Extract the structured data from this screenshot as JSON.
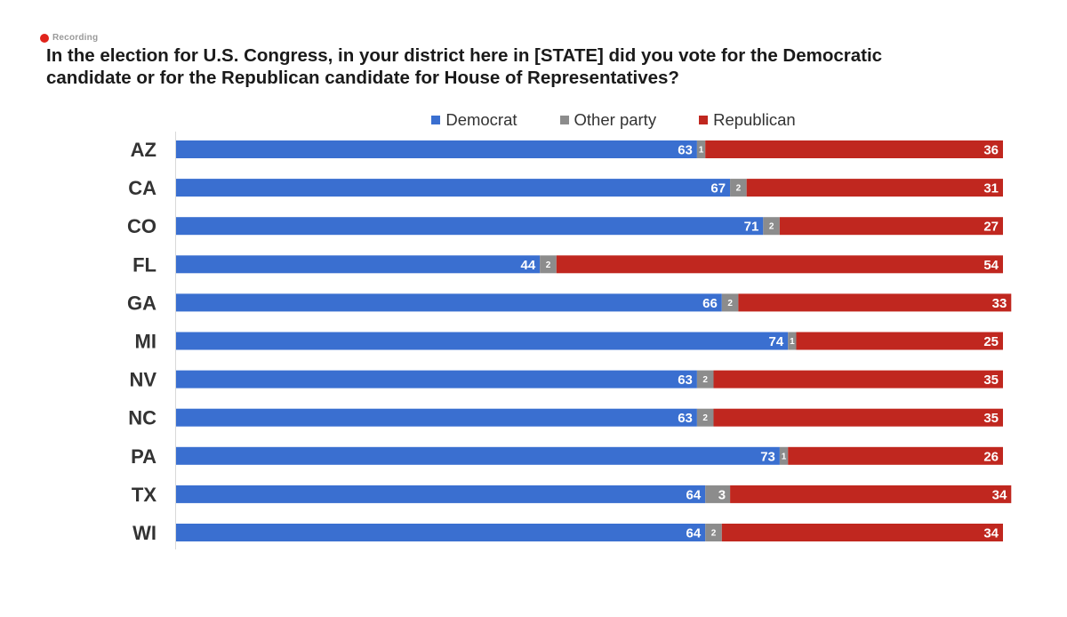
{
  "recording": {
    "label": "Recording"
  },
  "chart_data": {
    "type": "bar",
    "orientation": "horizontal-stacked-100",
    "title": "In the election for U.S. Congress, in your district here in [STATE] did you vote for the Democratic candidate or for the Republican candidate for House of Representatives?",
    "title_lines": [
      "In the election for U.S. Congress, in your district here in [STATE] did you vote for the Democratic",
      "candidate or for the Republican candidate for House of Representatives?"
    ],
    "legend_position": "top",
    "categories": [
      "AZ",
      "CA",
      "CO",
      "FL",
      "GA",
      "MI",
      "NV",
      "NC",
      "PA",
      "TX",
      "WI"
    ],
    "series": [
      {
        "name": "Democrat",
        "color": "#3a6fd0",
        "values": [
          63,
          67,
          71,
          44,
          66,
          74,
          63,
          63,
          73,
          64,
          64
        ]
      },
      {
        "name": "Other party",
        "color": "#8c8c8c",
        "values": [
          1,
          2,
          2,
          2,
          2,
          1,
          2,
          2,
          1,
          3,
          2
        ]
      },
      {
        "name": "Republican",
        "color": "#c0271f",
        "values": [
          36,
          31,
          27,
          54,
          33,
          25,
          35,
          35,
          26,
          34,
          34
        ]
      }
    ],
    "xlim": [
      0,
      100
    ],
    "grid": false
  }
}
